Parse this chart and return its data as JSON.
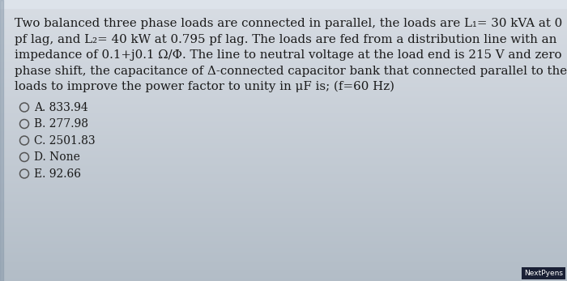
{
  "background_color_top": "#c8d0d8",
  "background_color_bottom": "#b8c0c8",
  "text_block_lines": [
    "Two balanced three phase loads are connected in parallel, the loads are L₁= 30 kVA at 0",
    "pf lag, and L₂= 40 kW at 0.795 pf lag. The loads are fed from a distribution line with an",
    "impedance of 0.1+j0.1 Ω/Φ. The line to neutral voltage at the load end is 215 V and zero",
    "phase shift, the capacitance of Δ-connected capacitor bank that connected parallel to the",
    "loads to improve the power factor to unity in μF is; (f=60 Hz)"
  ],
  "options": [
    "A. 833.94",
    "B. 277.98",
    "C. 2501.83",
    "D. None",
    "E. 92.66"
  ],
  "text_color": "#1a1a1a",
  "text_fontsize": 10.8,
  "option_fontsize": 10.0,
  "watermark": "NextPyens",
  "watermark_bg": "#1a2035",
  "top_strip_color": "#d8dde4",
  "left_bar_color": "#8899aa"
}
